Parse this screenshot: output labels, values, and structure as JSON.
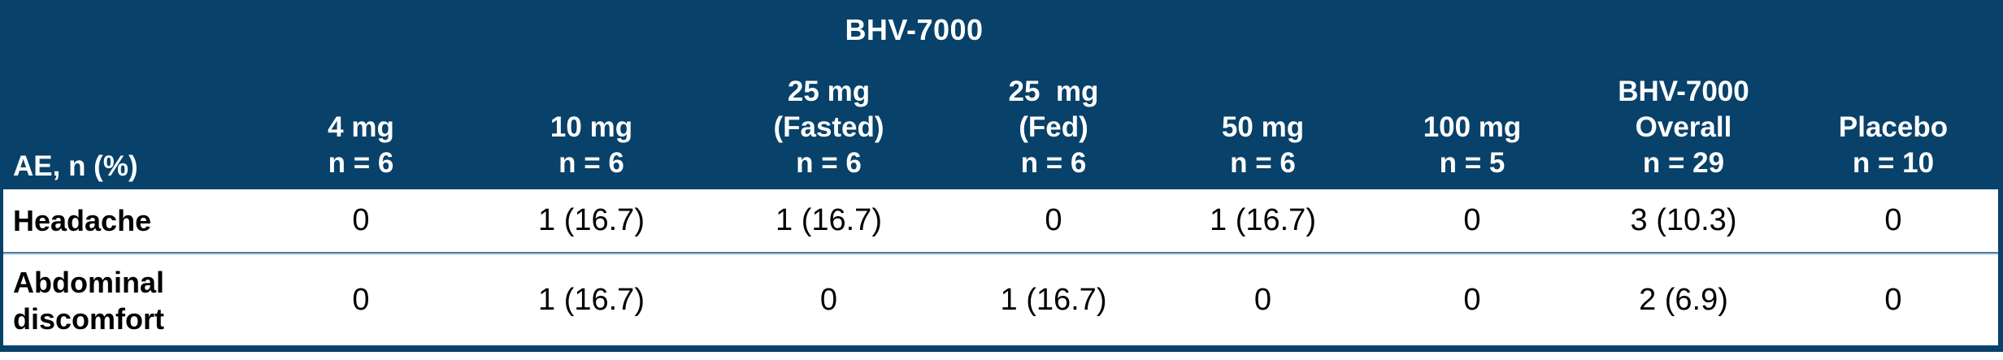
{
  "table": {
    "group_header": "BHV-7000",
    "row_header_label": "AE, n (%)",
    "columns": [
      {
        "id": "4mg",
        "lines": [
          "4 mg",
          "n = 6"
        ]
      },
      {
        "id": "10mg",
        "lines": [
          "10 mg",
          "n = 6"
        ]
      },
      {
        "id": "25mg-fasted",
        "lines": [
          "25 mg",
          "(Fasted)",
          "n = 6"
        ]
      },
      {
        "id": "25mg-fed",
        "lines": [
          "25  mg",
          "(Fed)",
          "n = 6"
        ]
      },
      {
        "id": "50mg",
        "lines": [
          "50 mg",
          "n = 6"
        ]
      },
      {
        "id": "100mg",
        "lines": [
          "100 mg",
          "n = 5"
        ]
      },
      {
        "id": "overall",
        "lines": [
          "BHV-7000",
          "Overall",
          "n = 29"
        ]
      },
      {
        "id": "placebo",
        "lines": [
          "Placebo",
          "n = 10"
        ]
      }
    ],
    "rows": [
      {
        "label": "Headache",
        "values": [
          "0",
          "1 (16.7)",
          "1 (16.7)",
          "0",
          "1 (16.7)",
          "0",
          "3 (10.3)",
          "0"
        ]
      },
      {
        "label": "Abdominal discomfort",
        "values": [
          "0",
          "1 (16.7)",
          "0",
          "1 (16.7)",
          "0",
          "0",
          "2 (6.9)",
          "0"
        ]
      }
    ]
  },
  "chart_data": {
    "type": "table",
    "title": "BHV-7000",
    "row_header": "AE, n (%)",
    "columns": [
      "4 mg (n = 6)",
      "10 mg (n = 6)",
      "25 mg Fasted (n = 6)",
      "25 mg Fed (n = 6)",
      "50 mg (n = 6)",
      "100 mg (n = 5)",
      "BHV-7000 Overall (n = 29)",
      "Placebo (n = 10)"
    ],
    "rows": [
      {
        "ae": "Headache",
        "values": [
          "0",
          "1 (16.7)",
          "1 (16.7)",
          "0",
          "1 (16.7)",
          "0",
          "3 (10.3)",
          "0"
        ]
      },
      {
        "ae": "Abdominal discomfort",
        "values": [
          "0",
          "1 (16.7)",
          "0",
          "1 (16.7)",
          "0",
          "0",
          "2 (6.9)",
          "0"
        ]
      }
    ]
  },
  "colors": {
    "header_bg": "#084169",
    "header_text": "#ffffff",
    "body_bg": "#ffffff",
    "body_text": "#000000",
    "divider_top": "#4d7aa1",
    "divider_bottom": "#cfdfee",
    "border": "#084169"
  }
}
